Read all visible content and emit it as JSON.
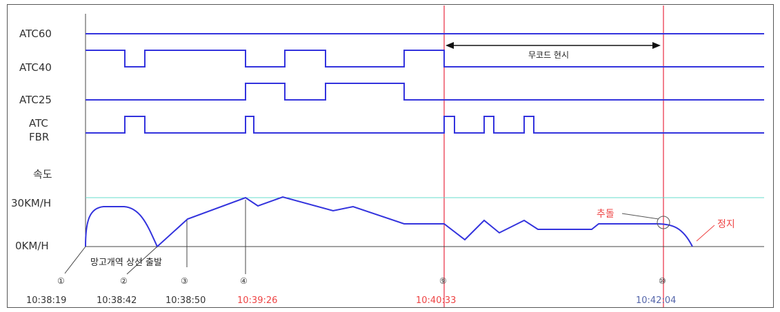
{
  "labels": {
    "atc60": "ATC60",
    "atc40": "ATC40",
    "atc25": "ATC25",
    "atc_fbr_1": "ATC",
    "atc_fbr_2": "FBR",
    "speed": "속도",
    "speed_max": "30KM/H",
    "speed_zero": "0KM/H"
  },
  "annotations": {
    "no_code": "무코드 현시",
    "departure": "망고개역 상선 출발",
    "collision": "추돌",
    "stop": "정지"
  },
  "markers": [
    {
      "num": "①",
      "time": "10:38:19",
      "highlight": false
    },
    {
      "num": "②",
      "time": "10:38:42",
      "highlight": false
    },
    {
      "num": "③",
      "time": "10:38:50",
      "highlight": false
    },
    {
      "num": "④",
      "time": "10:39:26",
      "highlight": true
    },
    {
      "num": "⑨",
      "time": "10:40:33",
      "highlight": true
    },
    {
      "num": "⑩",
      "time": "10:42:04",
      "highlight": false
    }
  ],
  "colors": {
    "signal": "#3333dd",
    "event_line": "#ee5566",
    "highlight_text": "#ee4444",
    "time_blue": "#5566aa",
    "limit_line": "#66ddcc",
    "annotation_red": "#ee4444"
  }
}
